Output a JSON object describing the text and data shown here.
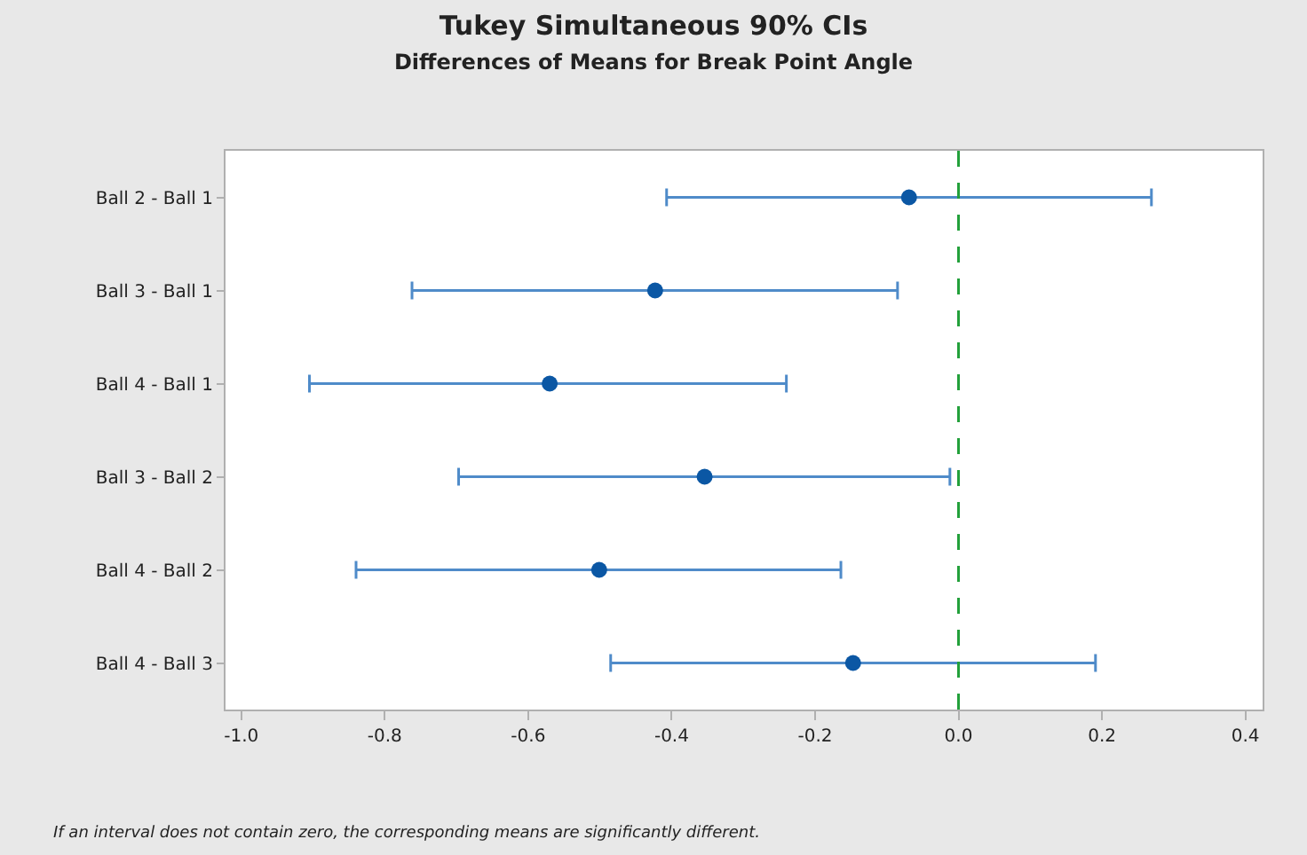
{
  "chart_data": {
    "type": "scatter",
    "orientation": "horizontal",
    "title": "Tukey Simultaneous 90% CIs",
    "subtitle": "Differences of Means for Break Point Angle",
    "categories": [
      "Ball 2 - Ball 1",
      "Ball 3 - Ball 1",
      "Ball 4 - Ball 1",
      "Ball 3 - Ball 2",
      "Ball 4 - Ball 2",
      "Ball 4 - Ball 3"
    ],
    "values": [
      -0.069,
      -0.423,
      -0.57,
      -0.354,
      -0.501,
      -0.147
    ],
    "errors": [
      [
        -0.407,
        0.269
      ],
      [
        -0.762,
        -0.085
      ],
      [
        -0.905,
        -0.24
      ],
      [
        -0.697,
        -0.012
      ],
      [
        -0.84,
        -0.164
      ],
      [
        -0.485,
        0.191
      ]
    ],
    "color": "#0b57a4",
    "marker": "circle",
    "xlim": [
      -1.022,
      0.424
    ],
    "xticks": [
      {
        "value": -1.0,
        "label": "-1.0"
      },
      -0.8,
      -0.6,
      -0.4,
      -0.2,
      {
        "value": 0.0,
        "label": "0.0"
      },
      0.2,
      0.4
    ],
    "ref_lines": [
      {
        "axis": "x",
        "value": 0,
        "color": "#22a03a",
        "line_style": "dashed"
      }
    ],
    "annotations": [
      "If an interval does not contain zero, the corresponding means are significantly different."
    ]
  }
}
